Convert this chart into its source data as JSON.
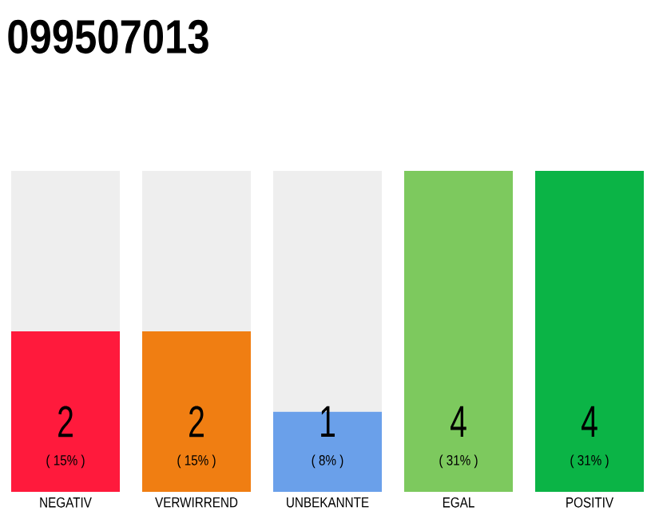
{
  "chart_data": {
    "type": "bar",
    "title": "099507013",
    "stacked": true,
    "categories": [
      "NEGATIV",
      "VERWIRREND",
      "UNBEKANNTE",
      "EGAL",
      "POSITIV"
    ],
    "series": [
      {
        "colors": [
          "#ff1a3c",
          "#f07e12",
          "#6aa0ea",
          "#7dc95e",
          "#0bb446"
        ],
        "values": [
          2,
          2,
          1,
          4,
          4
        ],
        "value_labels": [
          "2",
          "2",
          "1",
          "4",
          "4"
        ]
      },
      {
        "color": "#eeeeee",
        "values": [
          2,
          2,
          3,
          0,
          0
        ]
      }
    ],
    "annotations": [
      "( 15% )",
      "( 15% )",
      "( 8% )",
      "( 31% )",
      "( 31% )"
    ]
  }
}
